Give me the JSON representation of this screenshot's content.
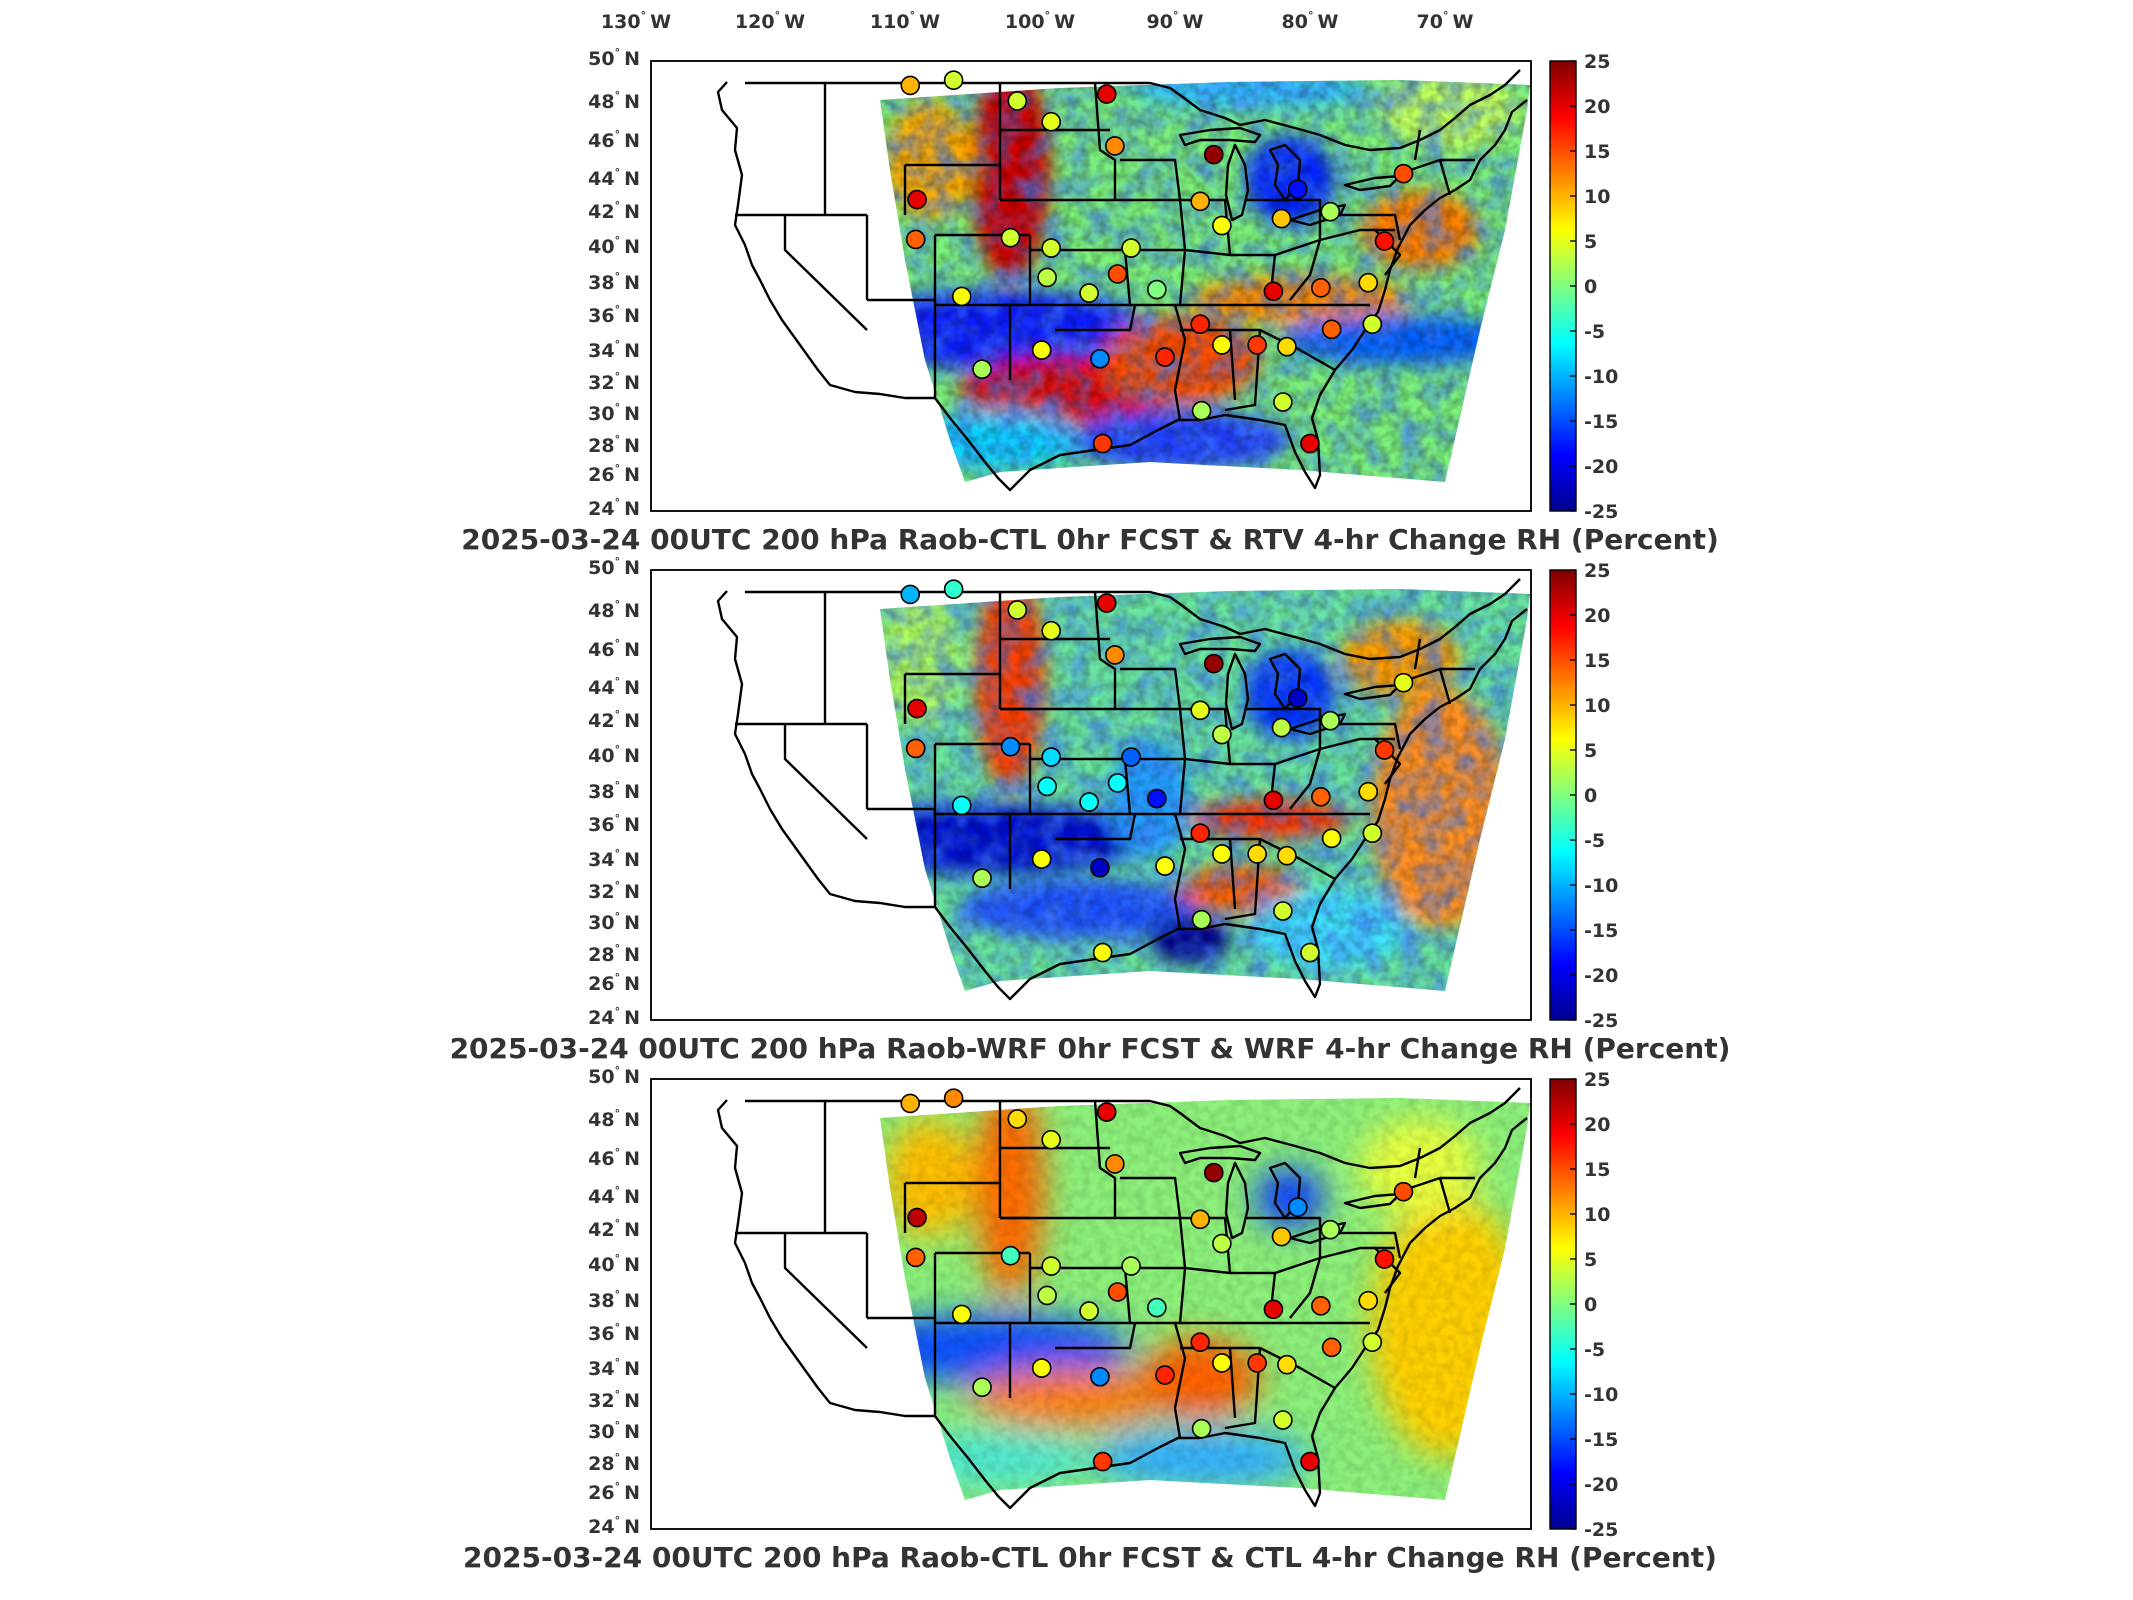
{
  "colors": {
    "colormap": [
      "#00008f",
      "#0000ff",
      "#0080ff",
      "#00ffff",
      "#80ff80",
      "#ffff00",
      "#ff8000",
      "#ff0000",
      "#800000"
    ],
    "state_lines": "#000000",
    "frame": "#000000",
    "text": "#333333"
  },
  "top_axis": {
    "ticks": [
      "130",
      "120",
      "110",
      "100",
      "90",
      "80",
      "70"
    ],
    "degree": "°",
    "hemisphere": "W"
  },
  "left_axis": {
    "ticks": [
      "50",
      "48",
      "46",
      "44",
      "42",
      "40",
      "38",
      "36",
      "34",
      "32",
      "30",
      "28",
      "26",
      "24"
    ],
    "degree": "°",
    "hemisphere": "N"
  },
  "colorbar": {
    "ticks": [
      "25",
      "20",
      "15",
      "10",
      "5",
      "0",
      "-5",
      "-10",
      "-15",
      "-20",
      "-25"
    ],
    "range": [
      -25,
      25
    ]
  },
  "panels": [
    {
      "title": "2025-03-24 00UTC 200 hPa Raob-CTL 0hr FCST & RTV 4-hr Change RH (Percent)",
      "markers": [
        [
          -111.9,
          48.6,
          10
        ],
        [
          -108.7,
          48.9,
          4
        ],
        [
          -104,
          47.7,
          4
        ],
        [
          -101.5,
          46.5,
          5
        ],
        [
          -97.4,
          48.1,
          20
        ],
        [
          -96.8,
          45.1,
          12
        ],
        [
          -89.5,
          44.6,
          24
        ],
        [
          -83.3,
          42.6,
          -18
        ],
        [
          -75.5,
          43.5,
          15
        ],
        [
          -111.4,
          42.0,
          20
        ],
        [
          -111.5,
          39.7,
          14
        ],
        [
          -104.5,
          39.8,
          4
        ],
        [
          -101.5,
          39.2,
          4
        ],
        [
          -95.6,
          39.2,
          4
        ],
        [
          -96.6,
          37.7,
          15
        ],
        [
          -90.5,
          41.9,
          10
        ],
        [
          -88.9,
          40.5,
          6
        ],
        [
          -84.5,
          40.9,
          9
        ],
        [
          -80.9,
          41.3,
          2
        ],
        [
          -76.9,
          39.6,
          18
        ],
        [
          -78.1,
          37.2,
          8
        ],
        [
          -81.6,
          36.9,
          14
        ],
        [
          -85.1,
          36.7,
          20
        ],
        [
          -86.3,
          33.6,
          16
        ],
        [
          -84.1,
          33.5,
          8
        ],
        [
          -80.8,
          34.5,
          14
        ],
        [
          -77.8,
          34.8,
          4
        ],
        [
          -90.5,
          34.8,
          17
        ],
        [
          -93.7,
          36.8,
          0
        ],
        [
          -98.7,
          36.6,
          4
        ],
        [
          -101.8,
          37.5,
          3
        ],
        [
          -108.1,
          36.4,
          6
        ],
        [
          -106.6,
          32.2,
          2
        ],
        [
          -102.2,
          33.3,
          6
        ],
        [
          -97.9,
          32.8,
          -12
        ],
        [
          -93.1,
          32.9,
          17
        ],
        [
          -88.9,
          33.6,
          6
        ],
        [
          -84.4,
          30.3,
          4
        ],
        [
          -97.7,
          27.9,
          16
        ],
        [
          -90.4,
          29.8,
          2
        ],
        [
          -82.4,
          27.9,
          20
        ]
      ]
    },
    {
      "title": "2025-03-24 00UTC 200 hPa Raob-WRF 0hr FCST & WRF 4-hr Change RH (Percent)",
      "markers": [
        [
          -111.9,
          48.6,
          -10
        ],
        [
          -108.7,
          48.9,
          -4
        ],
        [
          -104,
          47.7,
          4
        ],
        [
          -101.5,
          46.5,
          5
        ],
        [
          -97.4,
          48.1,
          20
        ],
        [
          -96.8,
          45.1,
          12
        ],
        [
          -89.5,
          44.6,
          24
        ],
        [
          -83.3,
          42.6,
          -22
        ],
        [
          -75.5,
          43.5,
          5
        ],
        [
          -111.4,
          42.0,
          20
        ],
        [
          -111.5,
          39.7,
          14
        ],
        [
          -104.5,
          39.8,
          -12
        ],
        [
          -101.5,
          39.2,
          -8
        ],
        [
          -95.6,
          39.2,
          -14
        ],
        [
          -96.6,
          37.7,
          -6
        ],
        [
          -90.5,
          41.9,
          5
        ],
        [
          -88.9,
          40.5,
          3
        ],
        [
          -84.5,
          40.9,
          3
        ],
        [
          -80.9,
          41.3,
          2
        ],
        [
          -76.9,
          39.6,
          16
        ],
        [
          -78.1,
          37.2,
          8
        ],
        [
          -81.6,
          36.9,
          14
        ],
        [
          -85.1,
          36.7,
          20
        ],
        [
          -86.3,
          33.6,
          8
        ],
        [
          -84.1,
          33.5,
          8
        ],
        [
          -80.8,
          34.5,
          6
        ],
        [
          -77.8,
          34.8,
          4
        ],
        [
          -90.5,
          34.8,
          17
        ],
        [
          -93.7,
          36.8,
          -18
        ],
        [
          -98.7,
          36.6,
          -6
        ],
        [
          -101.8,
          37.5,
          -6
        ],
        [
          -108.1,
          36.4,
          -6
        ],
        [
          -106.6,
          32.2,
          2
        ],
        [
          -102.2,
          33.3,
          6
        ],
        [
          -97.9,
          32.8,
          -22
        ],
        [
          -93.1,
          32.9,
          6
        ],
        [
          -88.9,
          33.6,
          6
        ],
        [
          -84.4,
          30.3,
          4
        ],
        [
          -97.7,
          27.9,
          6
        ],
        [
          -90.4,
          29.8,
          2
        ],
        [
          -82.4,
          27.9,
          4
        ]
      ]
    },
    {
      "title": "2025-03-24 00UTC 200 hPa Raob-CTL 0hr FCST & CTL 4-hr Change RH (Percent)",
      "markers": [
        [
          -111.9,
          48.6,
          10
        ],
        [
          -108.7,
          48.9,
          12
        ],
        [
          -104,
          47.7,
          8
        ],
        [
          -101.5,
          46.5,
          5
        ],
        [
          -97.4,
          48.1,
          20
        ],
        [
          -96.8,
          45.1,
          12
        ],
        [
          -89.5,
          44.6,
          24
        ],
        [
          -83.3,
          42.6,
          -12
        ],
        [
          -75.5,
          43.5,
          15
        ],
        [
          -111.4,
          42.0,
          22
        ],
        [
          -111.5,
          39.7,
          14
        ],
        [
          -104.5,
          39.8,
          -3
        ],
        [
          -101.5,
          39.2,
          4
        ],
        [
          -95.6,
          39.2,
          2
        ],
        [
          -96.6,
          37.7,
          15
        ],
        [
          -90.5,
          41.9,
          10
        ],
        [
          -88.9,
          40.5,
          3
        ],
        [
          -84.5,
          40.9,
          9
        ],
        [
          -80.9,
          41.3,
          2
        ],
        [
          -76.9,
          39.6,
          18
        ],
        [
          -78.1,
          37.2,
          8
        ],
        [
          -81.6,
          36.9,
          14
        ],
        [
          -85.1,
          36.7,
          20
        ],
        [
          -86.3,
          33.6,
          16
        ],
        [
          -84.1,
          33.5,
          8
        ],
        [
          -80.8,
          34.5,
          14
        ],
        [
          -77.8,
          34.8,
          4
        ],
        [
          -90.5,
          34.8,
          17
        ],
        [
          -93.7,
          36.8,
          -3
        ],
        [
          -98.7,
          36.6,
          4
        ],
        [
          -101.8,
          37.5,
          3
        ],
        [
          -108.1,
          36.4,
          6
        ],
        [
          -106.6,
          32.2,
          2
        ],
        [
          -102.2,
          33.3,
          6
        ],
        [
          -97.9,
          32.8,
          -12
        ],
        [
          -93.1,
          32.9,
          17
        ],
        [
          -88.9,
          33.6,
          6
        ],
        [
          -84.4,
          30.3,
          4
        ],
        [
          -97.7,
          27.9,
          16
        ],
        [
          -90.4,
          29.8,
          2
        ],
        [
          -82.4,
          27.9,
          20
        ]
      ]
    }
  ]
}
